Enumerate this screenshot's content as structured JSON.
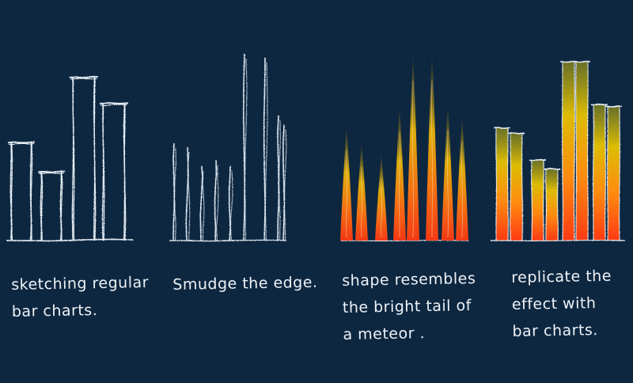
{
  "panels": [
    {
      "id": "regular",
      "style": "outline-boxes",
      "caption_lines": [
        "sketching regular",
        "bar charts."
      ],
      "bars": [
        0.6,
        0.42,
        1.0,
        0.84
      ]
    },
    {
      "id": "smudge",
      "style": "thin-lines",
      "caption_lines": [
        "Smudge the edge."
      ],
      "bars": [
        0.52,
        0.5,
        0.4,
        0.43,
        0.4,
        1.0,
        0.98,
        0.67,
        0.62
      ]
    },
    {
      "id": "meteor",
      "style": "meteor-tails",
      "caption_lines": [
        "shape resembles",
        "the bright tail of",
        "a meteor ."
      ],
      "bars": [
        0.62,
        0.53,
        0.47,
        0.72,
        1.0,
        1.0,
        0.73,
        0.67
      ]
    },
    {
      "id": "meteor-bars",
      "style": "meteor-boxes",
      "caption_lines": [
        "replicate the",
        "effect with",
        "bar charts."
      ],
      "bars": [
        0.63,
        0.6,
        0.45,
        0.4,
        1.0,
        1.0,
        0.76,
        0.75
      ]
    }
  ],
  "colors": {
    "background": "#0e2740",
    "chalk": "#e8f0f8",
    "meteor_base": "#ff3a12",
    "meteor_mid": "#ffb400",
    "meteor_top": "#c9a800"
  }
}
